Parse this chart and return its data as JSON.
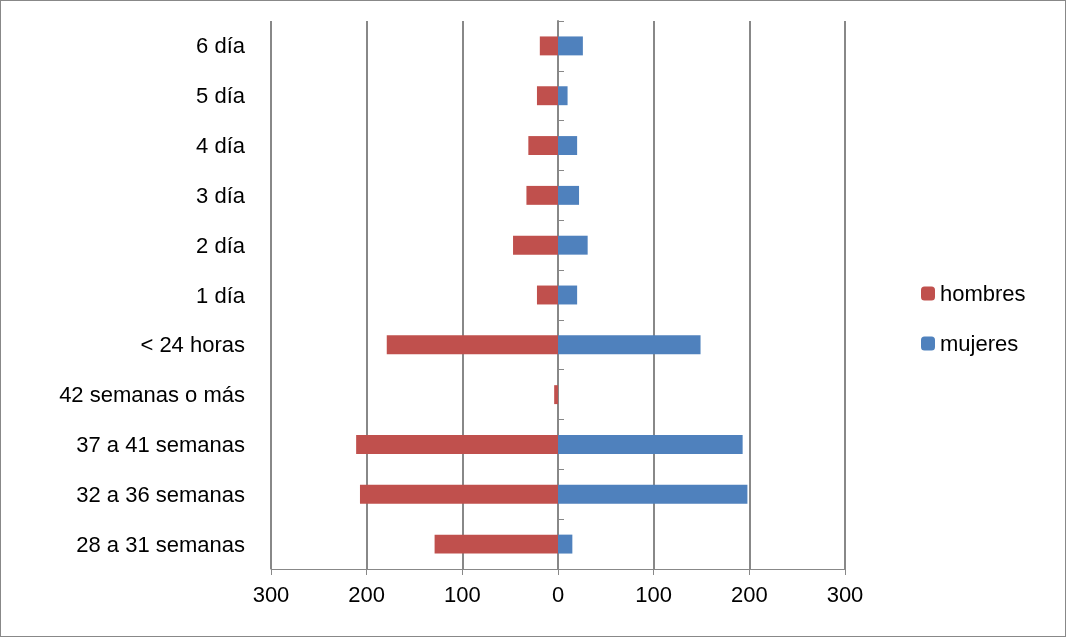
{
  "chart_data": {
    "type": "bar",
    "orientation": "horizontal",
    "categories": [
      "6 día",
      "5 día",
      "4 día",
      "3 día",
      "2 día",
      "1 día",
      "< 24 horas",
      "42 semanas o más",
      "37 a 41 semanas",
      "32 a 36 semanas",
      "28 a 31 semanas"
    ],
    "series": [
      {
        "name": "hombres",
        "color": "#c0504d",
        "values": [
          -19,
          -22,
          -31,
          -33,
          -47,
          -22,
          -179,
          -4,
          -211,
          -207,
          -129
        ]
      },
      {
        "name": "mujeres",
        "color": "#4f81bd",
        "values": [
          26,
          10,
          20,
          22,
          31,
          20,
          149,
          0,
          193,
          198,
          15
        ]
      }
    ],
    "xlim": [
      -300,
      300
    ],
    "xticks": [
      {
        "value": -300,
        "label": "300"
      },
      {
        "value": -200,
        "label": "200"
      },
      {
        "value": -100,
        "label": "100"
      },
      0,
      100,
      200,
      300
    ],
    "grid": "x",
    "legend": "right",
    "stacked": true
  }
}
